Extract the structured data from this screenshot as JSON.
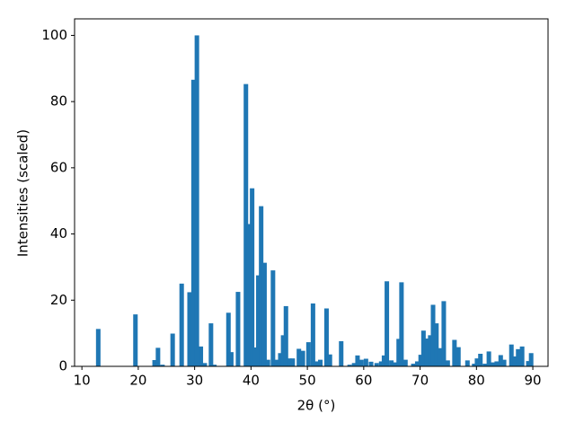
{
  "chart_data": {
    "type": "bar",
    "x_label": "2θ (°)",
    "y_label": "Intensities (scaled)",
    "color": "#1f77b4",
    "x": [
      12.9,
      19.5,
      22.9,
      23.5,
      24.3,
      26.1,
      27.7,
      29.1,
      29.8,
      30.4,
      31.1,
      31.8,
      32.9,
      33.5,
      36.0,
      36.5,
      37.7,
      39.1,
      39.6,
      40.2,
      40.8,
      41.3,
      41.8,
      42.4,
      43.0,
      43.9,
      44.6,
      45.2,
      45.7,
      46.2,
      46.8,
      47.4,
      48.5,
      49.2,
      50.2,
      51.0,
      51.6,
      52.3,
      53.4,
      54.0,
      56.0,
      57.5,
      58.3,
      58.9,
      59.6,
      60.4,
      61.3,
      62.3,
      63.1,
      63.6,
      64.1,
      64.9,
      65.6,
      66.2,
      66.7,
      67.4,
      68.8,
      69.5,
      70.1,
      70.6,
      71.2,
      71.8,
      72.3,
      72.9,
      73.5,
      74.2,
      74.9,
      76.1,
      76.8,
      78.4,
      79.6,
      80.1,
      80.7,
      81.5,
      82.2,
      82.9,
      83.6,
      84.3,
      84.9,
      86.2,
      86.8,
      87.4,
      88.1,
      89.2,
      89.7
    ],
    "values": [
      11.3,
      15.7,
      1.9,
      5.6,
      0.5,
      9.9,
      25,
      22.4,
      86.6,
      100,
      6,
      1,
      13,
      0.5,
      16.2,
      4.3,
      22.5,
      85.3,
      43,
      53.8,
      5.7,
      27.5,
      48.4,
      31.3,
      2,
      29,
      2,
      4,
      9.4,
      18.2,
      2.4,
      2.4,
      5.3,
      4.7,
      7.3,
      19,
      1.5,
      2,
      17.5,
      3.6,
      7.6,
      0.5,
      1,
      3.3,
      2,
      2.3,
      1.4,
      1,
      1.5,
      3.3,
      25.7,
      1.8,
      1.2,
      8.3,
      25.4,
      2,
      0.8,
      1.5,
      3.5,
      10.8,
      8.4,
      9.4,
      18.6,
      13,
      5.5,
      19.7,
      1.8,
      8,
      5.8,
      1.8,
      0.8,
      2.4,
      3.8,
      0.8,
      4.5,
      1.2,
      1.5,
      3.4,
      2,
      6.6,
      3,
      5.2,
      6,
      1.6,
      4
    ],
    "xlim": [
      8.7,
      92.7
    ],
    "ylim": [
      0,
      105
    ],
    "xticks": [
      10,
      20,
      30,
      40,
      50,
      60,
      70,
      80,
      90
    ],
    "yticks": [
      0,
      20,
      40,
      60,
      80,
      100
    ]
  }
}
